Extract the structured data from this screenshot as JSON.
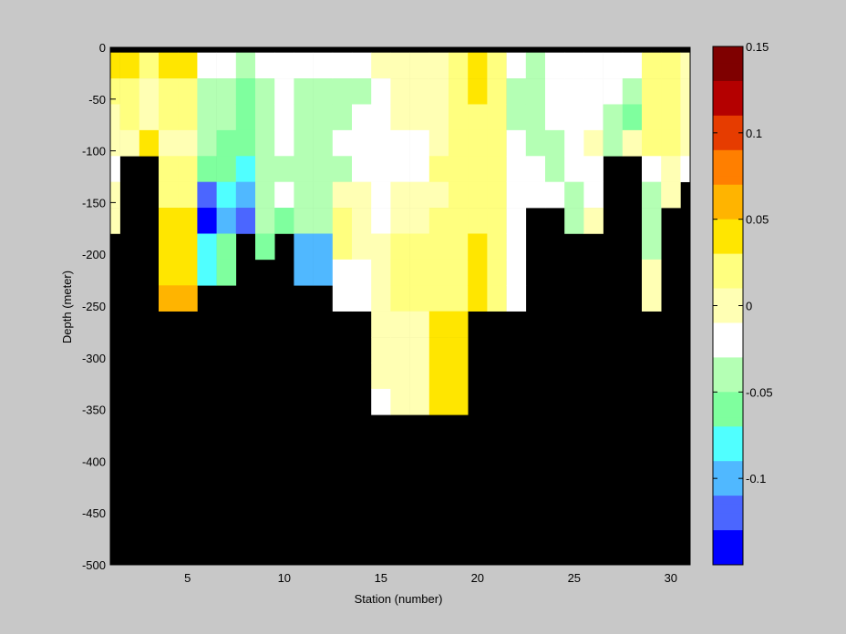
{
  "chart_data": {
    "type": "heatmap",
    "title": "",
    "xlabel": "Station (number)",
    "ylabel": "Depth (meter)",
    "xlim": [
      1,
      31
    ],
    "ylim": [
      -500,
      0
    ],
    "x_ticks": [
      5,
      10,
      15,
      20,
      25,
      30
    ],
    "x_tick_labels": [
      "5",
      "10",
      "15",
      "20",
      "25",
      "30"
    ],
    "y_ticks": [
      0,
      -50,
      -100,
      -150,
      -200,
      -250,
      -300,
      -350,
      -400,
      -450,
      -500
    ],
    "y_tick_labels": [
      "0",
      "-50",
      "-100",
      "-150",
      "-200",
      "-250",
      "-300",
      "-350",
      "-400",
      "-450",
      "-500"
    ],
    "colorbar": {
      "clim": [
        -0.15,
        0.15
      ],
      "ticks": [
        0.15,
        0.1,
        0.05,
        0,
        -0.05,
        -0.1
      ],
      "tick_labels": [
        "0.15",
        "0.1",
        "0.05",
        "0",
        "-0.05",
        "-0.1"
      ],
      "colormap_levels": [
        "#0000ff",
        "#4b66ff",
        "#50b8ff",
        "#50ffff",
        "#7fff9e",
        "#b4ffb4",
        "#ffffff",
        "#ffffb4",
        "#ffff7f",
        "#ffe600",
        "#ffb400",
        "#ff7f00",
        "#e63c00",
        "#b40000",
        "#7f0000"
      ]
    },
    "missing_color": "#000000",
    "grid": false,
    "cell_depths": [
      -10,
      -40,
      -70,
      -100,
      -130,
      -160,
      -190,
      -220,
      -250,
      -280,
      -310,
      -340,
      -370,
      -400
    ],
    "depth_layer_bounds": [
      -5,
      -30,
      -55,
      -80,
      -105,
      -130,
      -155,
      -180,
      -205,
      -230,
      -255,
      -280,
      -305,
      -330,
      -355,
      -380,
      -405
    ],
    "stations": [
      {
        "station": 1,
        "values": [
          0.03,
          0.02,
          0.005,
          0.0,
          -0.02,
          -0.005,
          -0.005
        ]
      },
      {
        "station": 2,
        "values": [
          0.04,
          0.025,
          0.01,
          0.005
        ]
      },
      {
        "station": 3,
        "values": [
          0.01,
          0.005,
          0.003,
          0.035
        ]
      },
      {
        "station": 4,
        "values": [
          0.04,
          0.025,
          0.02,
          0.005,
          0.025,
          0.025,
          0.03,
          0.045,
          0.045,
          0.06
        ]
      },
      {
        "station": 5,
        "values": [
          0.04,
          0.025,
          0.02,
          0.005,
          0.025,
          0.025,
          0.03,
          0.045,
          0.045,
          0.06
        ]
      },
      {
        "station": 6,
        "values": [
          -0.02,
          -0.04,
          -0.04,
          -0.04,
          -0.07,
          -0.12,
          -0.14,
          -0.09,
          -0.08
        ]
      },
      {
        "station": 7,
        "values": [
          -0.03,
          -0.05,
          -0.05,
          -0.06,
          -0.07,
          -0.09,
          -0.1,
          -0.07,
          -0.07
        ]
      },
      {
        "station": 8,
        "values": [
          -0.045,
          -0.065,
          -0.06,
          -0.06,
          -0.08,
          -0.11,
          -0.12
        ]
      },
      {
        "station": 9,
        "values": [
          -0.02,
          -0.035,
          -0.04,
          -0.04,
          -0.05,
          -0.05,
          -0.05,
          -0.07
        ]
      },
      {
        "station": 10,
        "values": [
          -0.01,
          -0.025,
          -0.03,
          -0.03,
          -0.035,
          -0.01,
          -0.065
        ]
      },
      {
        "station": 11,
        "values": [
          -0.03,
          -0.04,
          -0.045,
          -0.045,
          -0.045,
          -0.045,
          -0.045,
          -0.11,
          -0.11
        ]
      },
      {
        "station": 12,
        "values": [
          -0.03,
          -0.04,
          -0.045,
          -0.045,
          -0.045,
          -0.045,
          -0.045,
          -0.11,
          -0.11
        ]
      },
      {
        "station": 13,
        "values": [
          -0.03,
          -0.04,
          -0.035,
          -0.03,
          -0.035,
          -0.005,
          0.02,
          0.02,
          -0.02,
          -0.02
        ]
      },
      {
        "station": 14,
        "values": [
          -0.025,
          -0.035,
          -0.025,
          -0.02,
          -0.025,
          -0.005,
          -0.005,
          -0.005,
          -0.015,
          -0.015
        ]
      },
      {
        "station": 15,
        "values": [
          -0.005,
          -0.01,
          -0.015,
          -0.015,
          -0.01,
          -0.015,
          -0.01,
          -0.005,
          0.005,
          0.005,
          -0.005,
          -0.005,
          -0.005,
          -0.01
        ]
      },
      {
        "station": 16,
        "values": [
          -0.005,
          -0.005,
          -0.005,
          -0.01,
          -0.01,
          0.005,
          0.005,
          0.01,
          0.01,
          0.01,
          0.003,
          0.003,
          0.003,
          0.005
        ]
      },
      {
        "station": 17,
        "values": [
          -0.005,
          -0.005,
          -0.005,
          -0.015,
          -0.015,
          0.005,
          0.005,
          0.01,
          0.01,
          0.01,
          0.003,
          0.003,
          0.003,
          0.005
        ]
      },
      {
        "station": 18,
        "values": [
          0.005,
          0.005,
          0.005,
          0.005,
          0.01,
          0.005,
          0.01,
          0.01,
          0.01,
          0.02,
          0.03,
          0.03,
          0.03,
          0.03
        ]
      },
      {
        "station": 19,
        "values": [
          0.02,
          0.02,
          0.015,
          0.015,
          0.015,
          0.015,
          0.02,
          0.02,
          0.02,
          0.02,
          0.03,
          0.03,
          0.03,
          0.03
        ]
      },
      {
        "station": 20,
        "values": [
          0.04,
          0.035,
          0.025,
          0.02,
          0.02,
          0.025,
          0.025,
          0.03,
          0.03,
          0.03
        ]
      },
      {
        "station": 21,
        "values": [
          0.02,
          0.02,
          0.015,
          0.01,
          0.02,
          0.02,
          0.02,
          0.02,
          0.02,
          0.02
        ]
      },
      {
        "station": 22,
        "values": [
          -0.02,
          -0.035,
          -0.035,
          -0.03,
          -0.02,
          -0.015,
          -0.01,
          -0.01,
          -0.01,
          -0.01
        ]
      },
      {
        "station": 23,
        "values": [
          -0.035,
          -0.04,
          -0.035,
          -0.04,
          -0.03,
          -0.02
        ]
      },
      {
        "station": 24,
        "values": [
          -0.025,
          -0.03,
          -0.03,
          -0.035,
          -0.04,
          -0.02
        ]
      },
      {
        "station": 25,
        "values": [
          -0.02,
          -0.02,
          -0.02,
          -0.02,
          -0.03,
          -0.045,
          -0.045
        ]
      },
      {
        "station": 26,
        "values": [
          -0.02,
          -0.02,
          -0.02,
          0.0,
          -0.03,
          -0.03,
          0.0
        ]
      },
      {
        "station": 27,
        "values": [
          -0.02,
          -0.02,
          -0.04,
          -0.04
        ]
      },
      {
        "station": 28,
        "values": [
          -0.03,
          -0.04,
          -0.07,
          0.0
        ]
      },
      {
        "station": 29,
        "values": [
          0.02,
          0.02,
          0.02,
          0.02,
          -0.01,
          -0.04,
          -0.04,
          -0.04,
          -0.005,
          -0.005
        ]
      },
      {
        "station": 30,
        "values": [
          0.02,
          0.015,
          0.01,
          0.01,
          -0.005,
          -0.005
        ]
      },
      {
        "station": 31,
        "values": [
          0.005,
          0.005,
          0.005,
          0.005,
          -0.03
        ]
      }
    ]
  }
}
